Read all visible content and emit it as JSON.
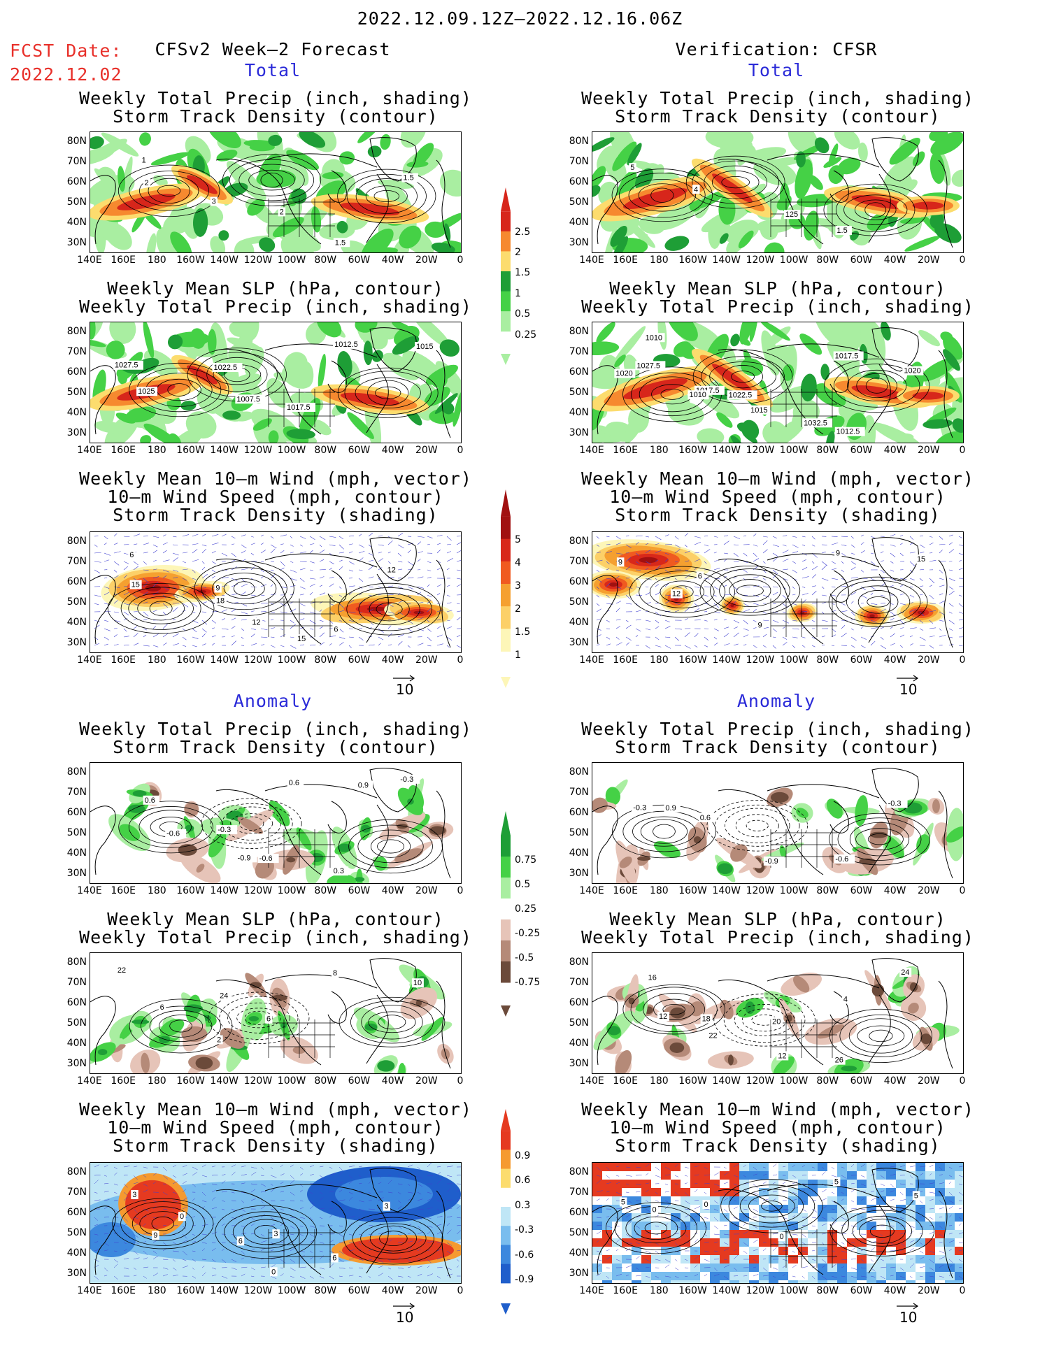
{
  "header": {
    "date_range": "2022.12.09.12Z–2022.12.16.06Z",
    "fcst_label": "FCST Date:",
    "fcst_date": "2022.12.02",
    "left_title": "CFSv2 Week–2 Forecast",
    "right_title": "Verification: CFSR"
  },
  "sections": {
    "total": "Total",
    "anomaly": "Anomaly"
  },
  "panel_titles": {
    "precip_storm": [
      "Weekly Total Precip (inch, shading)",
      "Storm Track Density (contour)"
    ],
    "slp_precip": [
      "Weekly Mean SLP (hPa, contour)",
      "Weekly Total Precip (inch, shading)"
    ],
    "wind_storm": [
      "Weekly Mean 10–m Wind (mph, vector)",
      "10–m Wind Speed (mph, contour)",
      "Storm Track Density (shading)"
    ]
  },
  "axes": {
    "lat_labels": [
      "80N",
      "70N",
      "60N",
      "50N",
      "40N",
      "30N"
    ],
    "lon_labels": [
      "140E",
      "160E",
      "180",
      "160W",
      "140W",
      "120W",
      "100W",
      "80W",
      "60W",
      "40W",
      "20W",
      "0"
    ]
  },
  "colorbars": {
    "precip_total": {
      "labels": [
        "2.5",
        "2",
        "1.5",
        "1",
        "0.5",
        "0.25"
      ],
      "colors": [
        "#d7261b",
        "#f6892f",
        "#fcdc6e",
        "#1e9e36",
        "#45d146",
        "#a9eea1"
      ]
    },
    "storm_total": {
      "labels": [
        "5",
        "4",
        "3",
        "2",
        "1.5",
        "1"
      ],
      "colors": [
        "#a11010",
        "#d8281a",
        "#f05a20",
        "#f5a030",
        "#fcd068",
        "#fdf6b8"
      ]
    },
    "precip_anom": {
      "labels": [
        "0.75",
        "0.5",
        "0.25",
        "-0.25",
        "-0.5",
        "-0.75"
      ],
      "colors": [
        "#1e9e36",
        "#45d146",
        "#a9eea1",
        "#ffffff",
        "#e6c4b8",
        "#b58a78",
        "#6b4a3a"
      ]
    },
    "storm_anom": {
      "labels": [
        "0.9",
        "0.6",
        "0.3",
        "-0.3",
        "-0.6",
        "-0.9"
      ],
      "colors": [
        "#e53a20",
        "#f59a30",
        "#fcdc6e",
        "#ffffff",
        "#bfe6f6",
        "#79bdee",
        "#3c88de",
        "#1f5ecb"
      ]
    }
  },
  "vector_ref": "10",
  "contour_labels": {
    "p1_precip_storm": [
      "1",
      "3",
      "2",
      "1.5",
      "1.5",
      "2"
    ],
    "p1_slp": [
      "1027.5",
      "1022.5",
      "1017.5",
      "1012.5",
      "1015",
      "1025",
      "1007.5"
    ],
    "p1_wind": [
      "6",
      "9",
      "12",
      "6",
      "12",
      "15",
      "18",
      "15"
    ],
    "v_precip_storm": [
      "5",
      "4",
      "125",
      "1.5"
    ],
    "v_slp": [
      "1010",
      "1017.5",
      "1015",
      "1012.5",
      "1020",
      "1027.5",
      "1022.5",
      "1032.5",
      "1017.5",
      "1020",
      "1010"
    ],
    "v_wind": [
      "9",
      "6",
      "9",
      "9",
      "15",
      "12"
    ],
    "a_precip_storm": [
      "0.6",
      "-0.3",
      "-0.6",
      "0.3",
      "-0.3",
      "-0.6",
      "-0.9",
      "0.6",
      "0.9"
    ],
    "va_precip_storm": [
      "-0.3",
      "0.6",
      "-0.9",
      "-0.6",
      "-0.3",
      "0.9"
    ],
    "a_slp": [
      "22",
      "24",
      "6",
      "8",
      "10",
      "6",
      "2"
    ],
    "va_slp": [
      "16",
      "18",
      "20",
      "26",
      "24",
      "12",
      "22",
      "12",
      "4"
    ],
    "a_wind": [
      "3",
      "0",
      "3",
      "6",
      "3",
      "9",
      "6",
      "0"
    ],
    "va_wind": [
      "5",
      "0",
      "0",
      "5",
      "5",
      "0"
    ]
  }
}
